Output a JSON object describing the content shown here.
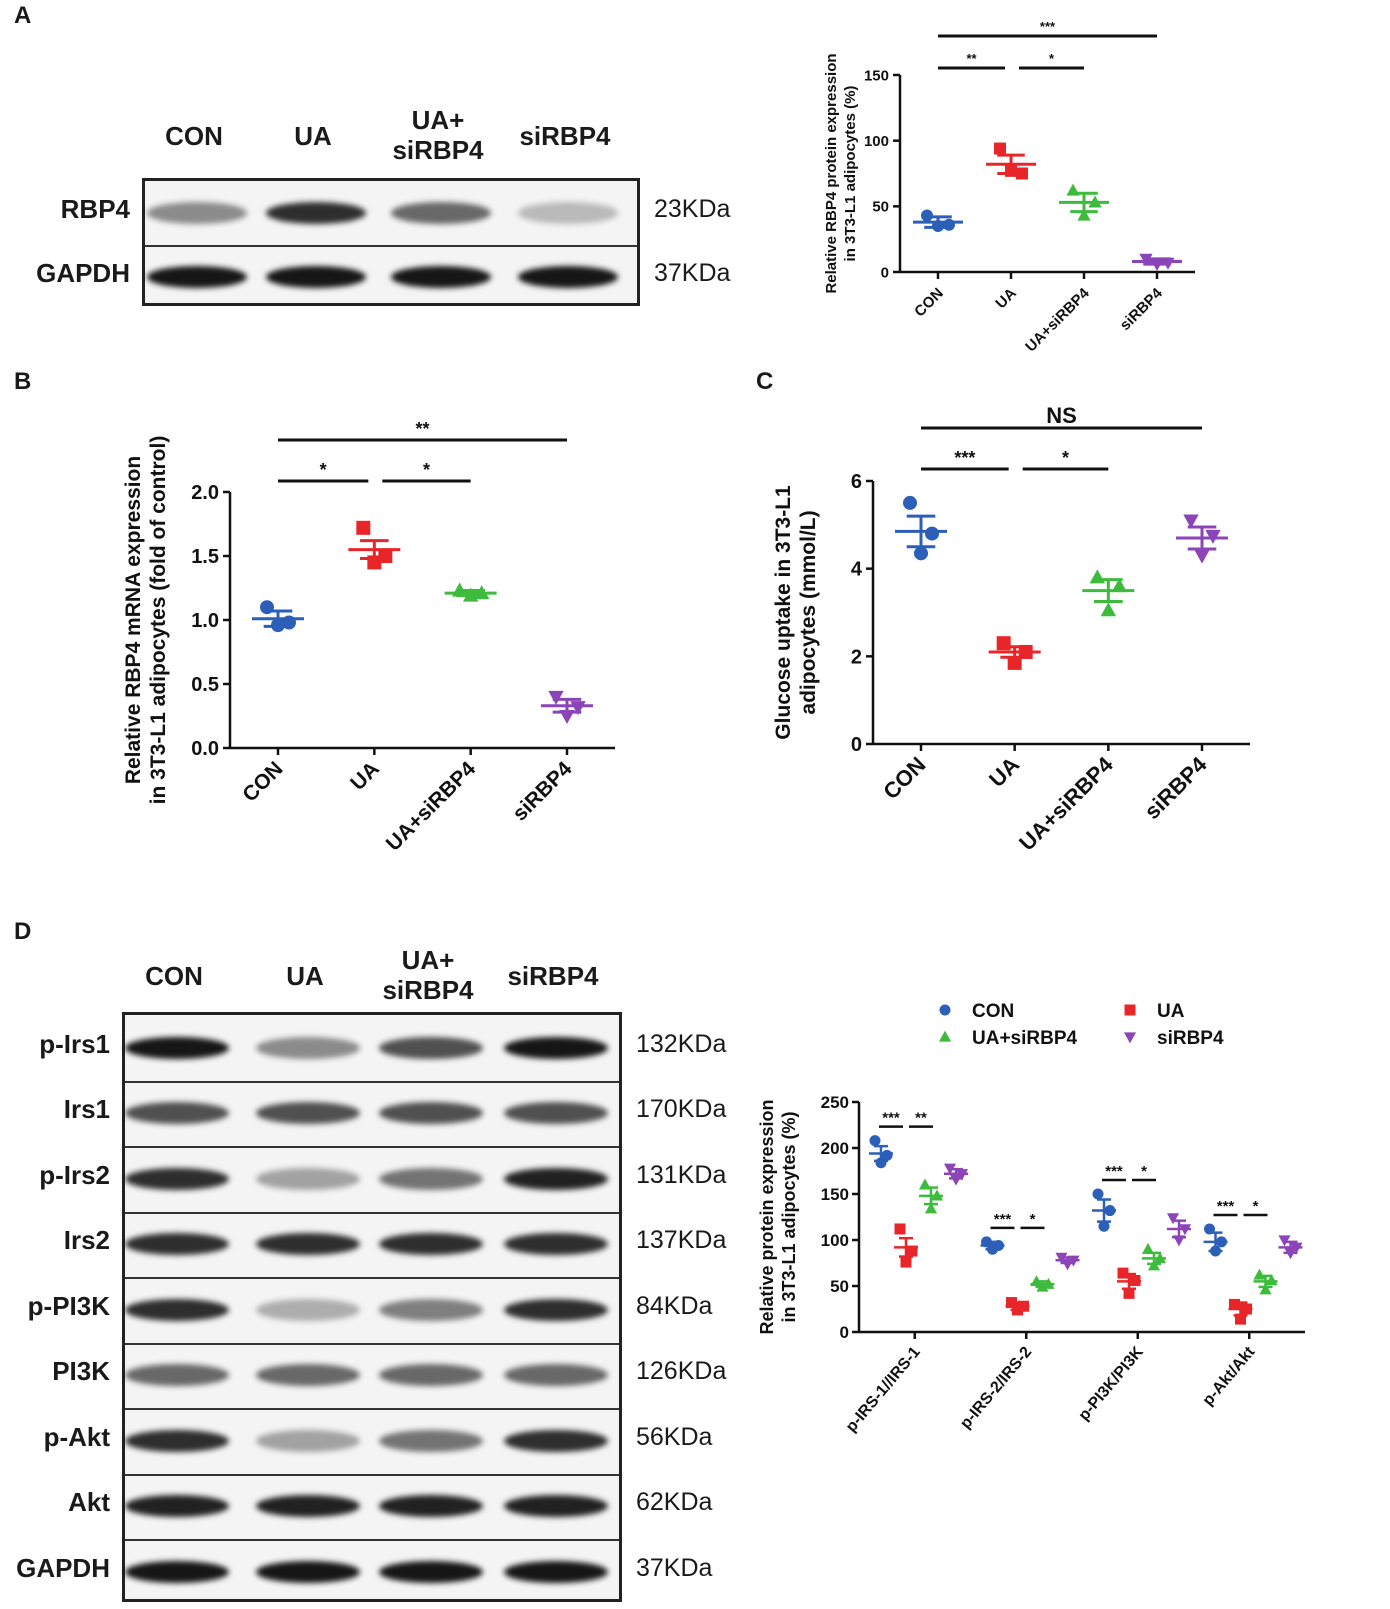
{
  "panels": {
    "a": "A",
    "b": "B",
    "c": "C",
    "d": "D"
  },
  "blot_a": {
    "lanes": [
      {
        "line1": "CON",
        "line2": ""
      },
      {
        "line1": "UA",
        "line2": ""
      },
      {
        "line1": "UA+",
        "line2": "siRBP4"
      },
      {
        "line1": "siRBP4",
        "line2": ""
      }
    ],
    "rows": [
      {
        "label": "RBP4",
        "kda": "23KDa",
        "intensity": [
          0.45,
          0.85,
          0.6,
          0.25
        ]
      },
      {
        "label": "GAPDH",
        "kda": "37KDa",
        "intensity": [
          0.95,
          0.95,
          0.95,
          0.95
        ]
      }
    ]
  },
  "blot_d": {
    "lanes": [
      {
        "line1": "CON",
        "line2": ""
      },
      {
        "line1": "UA",
        "line2": ""
      },
      {
        "line1": "UA+",
        "line2": "siRBP4"
      },
      {
        "line1": "siRBP4",
        "line2": ""
      }
    ],
    "rows": [
      {
        "label": "p-Irs1",
        "kda": "132KDa",
        "intensity": [
          0.95,
          0.45,
          0.7,
          0.95
        ]
      },
      {
        "label": "Irs1",
        "kda": "170KDa",
        "intensity": [
          0.7,
          0.7,
          0.7,
          0.7
        ]
      },
      {
        "label": "p-Irs2",
        "kda": "131KDa",
        "intensity": [
          0.85,
          0.35,
          0.55,
          0.9
        ]
      },
      {
        "label": "Irs2",
        "kda": "137KDa",
        "intensity": [
          0.85,
          0.85,
          0.85,
          0.85
        ]
      },
      {
        "label": "p-PI3K",
        "kda": "84KDa",
        "intensity": [
          0.85,
          0.3,
          0.5,
          0.85
        ]
      },
      {
        "label": "PI3K",
        "kda": "126KDa",
        "intensity": [
          0.6,
          0.6,
          0.6,
          0.6
        ]
      },
      {
        "label": "p-Akt",
        "kda": "56KDa",
        "intensity": [
          0.85,
          0.35,
          0.55,
          0.85
        ]
      },
      {
        "label": "Akt",
        "kda": "62KDa",
        "intensity": [
          0.9,
          0.9,
          0.9,
          0.9
        ]
      },
      {
        "label": "GAPDH",
        "kda": "37KDa",
        "intensity": [
          0.95,
          0.95,
          0.95,
          0.95
        ]
      }
    ]
  },
  "colors": {
    "CON": "#2b5fb8",
    "UA": "#e8262a",
    "UA+siRBP4": "#3dbb3d",
    "siRBP4": "#8b45b8",
    "axis": "#111111",
    "sig": "#111111"
  },
  "chart_data": [
    {
      "id": "A",
      "type": "scatter",
      "title": "",
      "ylabel_lines": [
        "Relative RBP4 protein expression",
        "in 3T3-L1 adipocytes (%)"
      ],
      "categories": [
        "CON",
        "UA",
        "UA+siRBP4",
        "siRBP4"
      ],
      "yticks": [
        "0",
        "50",
        "100",
        "150"
      ],
      "ylim": [
        0,
        150
      ],
      "series": [
        {
          "group": "CON",
          "marker": "circle",
          "mean": 38,
          "sem": 4,
          "points": [
            43,
            36,
            35
          ]
        },
        {
          "group": "UA",
          "marker": "square",
          "mean": 82,
          "sem": 7,
          "points": [
            94,
            75,
            77
          ]
        },
        {
          "group": "UA+siRBP4",
          "marker": "triangle",
          "mean": 53,
          "sem": 7,
          "points": [
            62,
            53,
            43
          ]
        },
        {
          "group": "siRBP4",
          "marker": "triangle-down",
          "mean": 8,
          "sem": 2,
          "points": [
            10,
            7,
            6
          ]
        }
      ],
      "significance": [
        {
          "from": 0,
          "to": 3,
          "label": "***"
        },
        {
          "from": 0,
          "to": 1,
          "label": "**"
        },
        {
          "from": 1,
          "to": 2,
          "label": "*"
        }
      ]
    },
    {
      "id": "B",
      "type": "scatter",
      "title": "",
      "ylabel_lines": [
        "Relative RBP4 mRNA expression",
        "in 3T3-L1 adipocytes (fold of control)"
      ],
      "categories": [
        "CON",
        "UA",
        "UA+siRBP4",
        "siRBP4"
      ],
      "yticks": [
        "0.0",
        "0.5",
        "1.0",
        "1.5",
        "2.0"
      ],
      "ylim": [
        0,
        2.0
      ],
      "series": [
        {
          "group": "CON",
          "marker": "circle",
          "mean": 1.01,
          "sem": 0.06,
          "points": [
            1.1,
            0.98,
            0.96
          ]
        },
        {
          "group": "UA",
          "marker": "square",
          "mean": 1.55,
          "sem": 0.07,
          "points": [
            1.72,
            1.5,
            1.45
          ]
        },
        {
          "group": "UA+siRBP4",
          "marker": "triangle",
          "mean": 1.21,
          "sem": 0.02,
          "points": [
            1.23,
            1.21,
            1.19
          ]
        },
        {
          "group": "siRBP4",
          "marker": "triangle-down",
          "mean": 0.33,
          "sem": 0.05,
          "points": [
            0.4,
            0.32,
            0.25
          ]
        }
      ],
      "significance": [
        {
          "from": 0,
          "to": 3,
          "label": "**"
        },
        {
          "from": 0,
          "to": 1,
          "label": "*"
        },
        {
          "from": 1,
          "to": 2,
          "label": "*"
        }
      ]
    },
    {
      "id": "C",
      "type": "scatter",
      "title": "",
      "ylabel_lines": [
        "Glucose uptake in 3T3-L1",
        "adipocytes (mmol/L)"
      ],
      "categories": [
        "CON",
        "UA",
        "UA+siRBP4",
        "siRBP4"
      ],
      "yticks": [
        "0",
        "2",
        "4",
        "6"
      ],
      "ylim": [
        0,
        6
      ],
      "series": [
        {
          "group": "CON",
          "marker": "circle",
          "mean": 4.85,
          "sem": 0.35,
          "points": [
            5.5,
            4.8,
            4.35
          ]
        },
        {
          "group": "UA",
          "marker": "square",
          "mean": 2.1,
          "sem": 0.12,
          "points": [
            2.3,
            2.1,
            1.85
          ]
        },
        {
          "group": "UA+siRBP4",
          "marker": "triangle",
          "mean": 3.5,
          "sem": 0.25,
          "points": [
            3.8,
            3.6,
            3.05
          ]
        },
        {
          "group": "siRBP4",
          "marker": "triangle-down",
          "mean": 4.7,
          "sem": 0.25,
          "points": [
            5.1,
            4.75,
            4.3
          ]
        }
      ],
      "significance": [
        {
          "from": 0,
          "to": 3,
          "label": "NS"
        },
        {
          "from": 0,
          "to": 1,
          "label": "***"
        },
        {
          "from": 1,
          "to": 2,
          "label": "*"
        }
      ]
    },
    {
      "id": "D",
      "type": "scatter",
      "title": "",
      "ylabel_lines": [
        "Relative protein expression",
        "in 3T3-L1 adipocytes (%)"
      ],
      "categories": [
        "p-IRS-1//IRS-1",
        "p-IRS-2/IRS-2",
        "p-PI3K/PI3K",
        "p-Akt/Akt"
      ],
      "yticks": [
        "0",
        "50",
        "100",
        "150",
        "200",
        "250"
      ],
      "ylim": [
        0,
        250
      ],
      "legend": [
        {
          "group": "CON",
          "marker": "circle"
        },
        {
          "group": "UA",
          "marker": "square"
        },
        {
          "group": "UA+siRBP4",
          "marker": "triangle"
        },
        {
          "group": "siRBP4",
          "marker": "triangle-down"
        }
      ],
      "series": [
        {
          "group": "CON",
          "marker": "circle",
          "values": [
            {
              "mean": 194,
              "sem": 8,
              "points": [
                208,
                192,
                184
              ]
            },
            {
              "mean": 94,
              "sem": 4,
              "points": [
                98,
                94,
                90
              ]
            },
            {
              "mean": 132,
              "sem": 12,
              "points": [
                150,
                132,
                115
              ]
            },
            {
              "mean": 98,
              "sem": 10,
              "points": [
                112,
                98,
                88
              ]
            }
          ]
        },
        {
          "group": "UA",
          "marker": "square",
          "values": [
            {
              "mean": 92,
              "sem": 10,
              "points": [
                112,
                88,
                76
              ]
            },
            {
              "mean": 28,
              "sem": 4,
              "points": [
                32,
                28,
                24
              ]
            },
            {
              "mean": 55,
              "sem": 8,
              "points": [
                64,
                56,
                42
              ]
            },
            {
              "mean": 25,
              "sem": 7,
              "points": [
                30,
                25,
                14
              ]
            }
          ]
        },
        {
          "group": "UA+siRBP4",
          "marker": "triangle",
          "values": [
            {
              "mean": 148,
              "sem": 9,
              "points": [
                160,
                148,
                134
              ]
            },
            {
              "mean": 52,
              "sem": 3,
              "points": [
                55,
                52,
                49
              ]
            },
            {
              "mean": 80,
              "sem": 6,
              "points": [
                90,
                80,
                72
              ]
            },
            {
              "mean": 55,
              "sem": 6,
              "points": [
                62,
                56,
                46
              ]
            }
          ]
        },
        {
          "group": "siRBP4",
          "marker": "triangle-down",
          "values": [
            {
              "mean": 172,
              "sem": 5,
              "points": [
                178,
                172,
                166
              ]
            },
            {
              "mean": 78,
              "sem": 3,
              "points": [
                81,
                78,
                74
              ]
            },
            {
              "mean": 112,
              "sem": 9,
              "points": [
                124,
                112,
                100
              ]
            },
            {
              "mean": 92,
              "sem": 6,
              "points": [
                100,
                92,
                86
              ]
            }
          ]
        }
      ],
      "significance": [
        {
          "category": 0,
          "pair": [
            0,
            1
          ],
          "label": "***"
        },
        {
          "category": 0,
          "pair": [
            1,
            2
          ],
          "label": "**"
        },
        {
          "category": 1,
          "pair": [
            0,
            1
          ],
          "label": "***"
        },
        {
          "category": 1,
          "pair": [
            1,
            2
          ],
          "label": "*"
        },
        {
          "category": 2,
          "pair": [
            0,
            1
          ],
          "label": "***"
        },
        {
          "category": 2,
          "pair": [
            1,
            2
          ],
          "label": "*"
        },
        {
          "category": 3,
          "pair": [
            0,
            1
          ],
          "label": "***"
        },
        {
          "category": 3,
          "pair": [
            1,
            2
          ],
          "label": "*"
        }
      ]
    }
  ]
}
